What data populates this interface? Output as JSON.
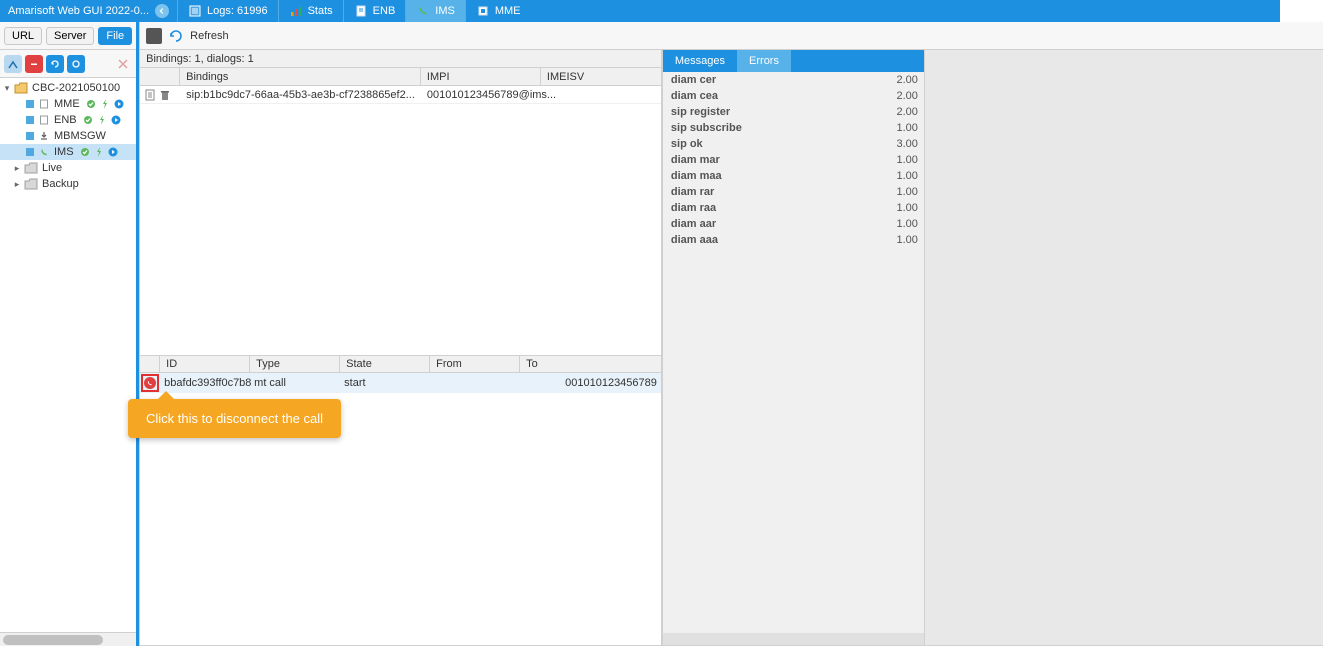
{
  "colors": {
    "primary": "#1e90e0",
    "accent": "#56b2e8",
    "green": "#5cb85c",
    "red": "#e04040",
    "tooltip": "#f5a623"
  },
  "topbar": {
    "title": "Amarisoft Web GUI 2022-0...",
    "tabs": [
      {
        "label": "Logs: 61996",
        "icon": "logs"
      },
      {
        "label": "Stats",
        "icon": "stats"
      },
      {
        "label": "ENB",
        "icon": "enb"
      },
      {
        "label": "IMS",
        "icon": "ims",
        "active": true
      },
      {
        "label": "MME",
        "icon": "mme"
      }
    ]
  },
  "sidebar": {
    "row1": {
      "url": "URL",
      "server": "Server",
      "file": "File"
    },
    "tree": {
      "root": "CBC-2021050100",
      "nodes": [
        {
          "name": "MME",
          "icons": [
            "sq",
            "doc",
            "grn",
            "bolt",
            "play"
          ]
        },
        {
          "name": "ENB",
          "icons": [
            "sq",
            "doc",
            "grn",
            "bolt",
            "play"
          ]
        },
        {
          "name": "MBMSGW",
          "icons": [
            "sq",
            "dl"
          ]
        },
        {
          "name": "IMS",
          "icons": [
            "sq",
            "phone",
            "grn",
            "bolt",
            "play"
          ],
          "selected": true
        }
      ],
      "live": "Live",
      "backup": "Backup"
    }
  },
  "main": {
    "toolbar": {
      "refresh": "Refresh"
    },
    "summary": "Bindings: 1, dialogs: 1",
    "bind_headers": {
      "bindings": "Bindings",
      "impi": "IMPI",
      "imeisv": "IMEISV"
    },
    "bind_row": {
      "bindings": "sip:b1bc9dc7-66aa-45b3-ae3b-cf7238865ef2...",
      "impi": "001010123456789@ims...",
      "imeisv": ""
    },
    "dlg_headers": {
      "id": "ID",
      "type": "Type",
      "state": "State",
      "from": "From",
      "to": "To"
    },
    "dlg_row": {
      "id": "bbafdc393ff0c7b8",
      "type": "mt call",
      "state": "start",
      "from": "",
      "to": "001010123456789"
    }
  },
  "right": {
    "tabs": {
      "messages": "Messages",
      "errors": "Errors"
    },
    "messages": [
      {
        "label": "diam cer",
        "value": "2.00"
      },
      {
        "label": "diam cea",
        "value": "2.00"
      },
      {
        "label": "sip register",
        "value": "2.00"
      },
      {
        "label": "sip subscribe",
        "value": "1.00"
      },
      {
        "label": "sip ok",
        "value": "3.00"
      },
      {
        "label": "diam mar",
        "value": "1.00"
      },
      {
        "label": "diam maa",
        "value": "1.00"
      },
      {
        "label": "diam rar",
        "value": "1.00"
      },
      {
        "label": "diam raa",
        "value": "1.00"
      },
      {
        "label": "diam aar",
        "value": "1.00"
      },
      {
        "label": "diam aaa",
        "value": "1.00"
      }
    ]
  },
  "tooltip": "Click this to disconnect the call"
}
